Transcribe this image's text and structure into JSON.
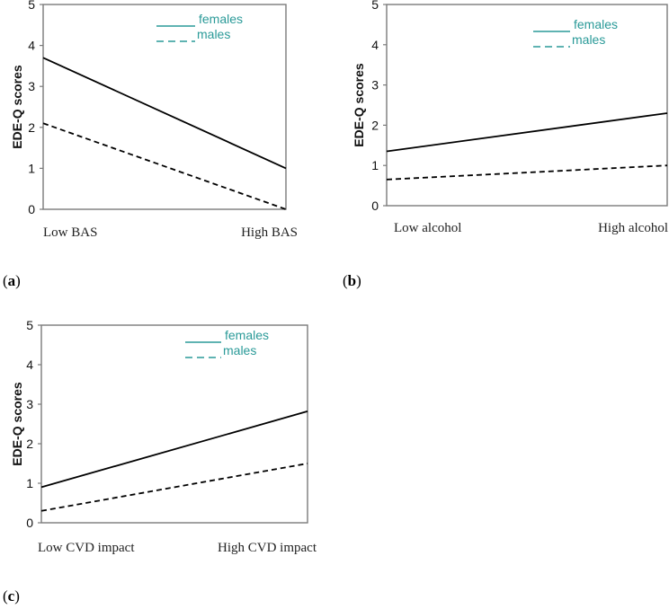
{
  "chart_data": [
    {
      "panel": "a",
      "type": "line",
      "title": "",
      "ylabel": "EDE-Q scores",
      "xlabel": "",
      "categories": [
        "Low BAS",
        "High BAS"
      ],
      "yticks": [
        0,
        1,
        2,
        3,
        4,
        5
      ],
      "ylim": [
        0,
        5
      ],
      "grid": false,
      "legend_position": "top-right",
      "series": [
        {
          "name": "females",
          "style": "solid",
          "values": [
            3.7,
            1.0
          ]
        },
        {
          "name": "males",
          "style": "dashed",
          "values": [
            2.1,
            0.0
          ]
        }
      ]
    },
    {
      "panel": "b",
      "type": "line",
      "title": "",
      "ylabel": "EDE-Q scores",
      "xlabel": "",
      "categories": [
        "Low alcohol",
        "High alcohol"
      ],
      "yticks": [
        0,
        1,
        2,
        3,
        4,
        5
      ],
      "ylim": [
        0,
        5
      ],
      "grid": false,
      "legend_position": "top-right",
      "series": [
        {
          "name": "females",
          "style": "solid",
          "values": [
            1.35,
            2.3
          ]
        },
        {
          "name": "males",
          "style": "dashed",
          "values": [
            0.65,
            1.0
          ]
        }
      ]
    },
    {
      "panel": "c",
      "type": "line",
      "title": "",
      "ylabel": "EDE-Q scores",
      "xlabel": "",
      "categories": [
        "Low CVD impact",
        "High CVD impact"
      ],
      "yticks": [
        0,
        1,
        2,
        3,
        4,
        5
      ],
      "ylim": [
        0,
        5
      ],
      "grid": false,
      "legend_position": "top-right",
      "series": [
        {
          "name": "females",
          "style": "solid",
          "values": [
            0.9,
            2.82
          ]
        },
        {
          "name": "males",
          "style": "dashed",
          "values": [
            0.3,
            1.5
          ]
        }
      ]
    }
  ],
  "panel_labels": [
    "a",
    "b",
    "c"
  ],
  "colors": {
    "line": "#000000",
    "legend": "#2a9a98",
    "axis": "#7a7a7a"
  }
}
